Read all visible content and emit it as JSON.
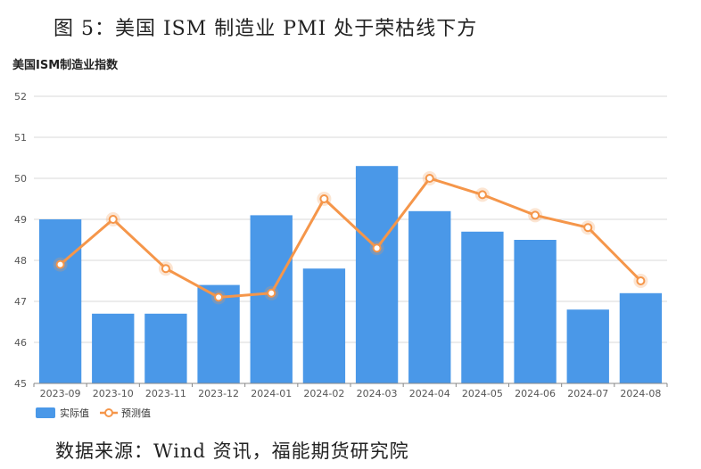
{
  "figure_title": "图 5：美国 ISM 制造业 PMI 处于荣枯线下方",
  "source": "数据来源：Wind 资讯，福能期货研究院",
  "chart_data": {
    "type": "bar",
    "title": "美国ISM制造业指数",
    "categories": [
      "2023-09",
      "2023-10",
      "2023-11",
      "2023-12",
      "2024-01",
      "2024-02",
      "2024-03",
      "2024-04",
      "2024-05",
      "2024-06",
      "2024-07",
      "2024-08"
    ],
    "series": [
      {
        "name": "实际值",
        "type": "bar",
        "color": "#4a98e8",
        "values": [
          49.0,
          46.7,
          46.7,
          47.4,
          49.1,
          47.8,
          50.3,
          49.2,
          48.7,
          48.5,
          46.8,
          47.2
        ]
      },
      {
        "name": "预测值",
        "type": "line",
        "color": "#f5964a",
        "values": [
          47.9,
          49.0,
          47.8,
          47.1,
          47.2,
          49.5,
          48.3,
          50.0,
          49.6,
          49.1,
          48.8,
          47.5
        ]
      }
    ],
    "ylim": [
      45,
      52
    ],
    "yticks": [
      45,
      46,
      47,
      48,
      49,
      50,
      51,
      52
    ],
    "grid": true,
    "legend_position": "bottom-left"
  }
}
